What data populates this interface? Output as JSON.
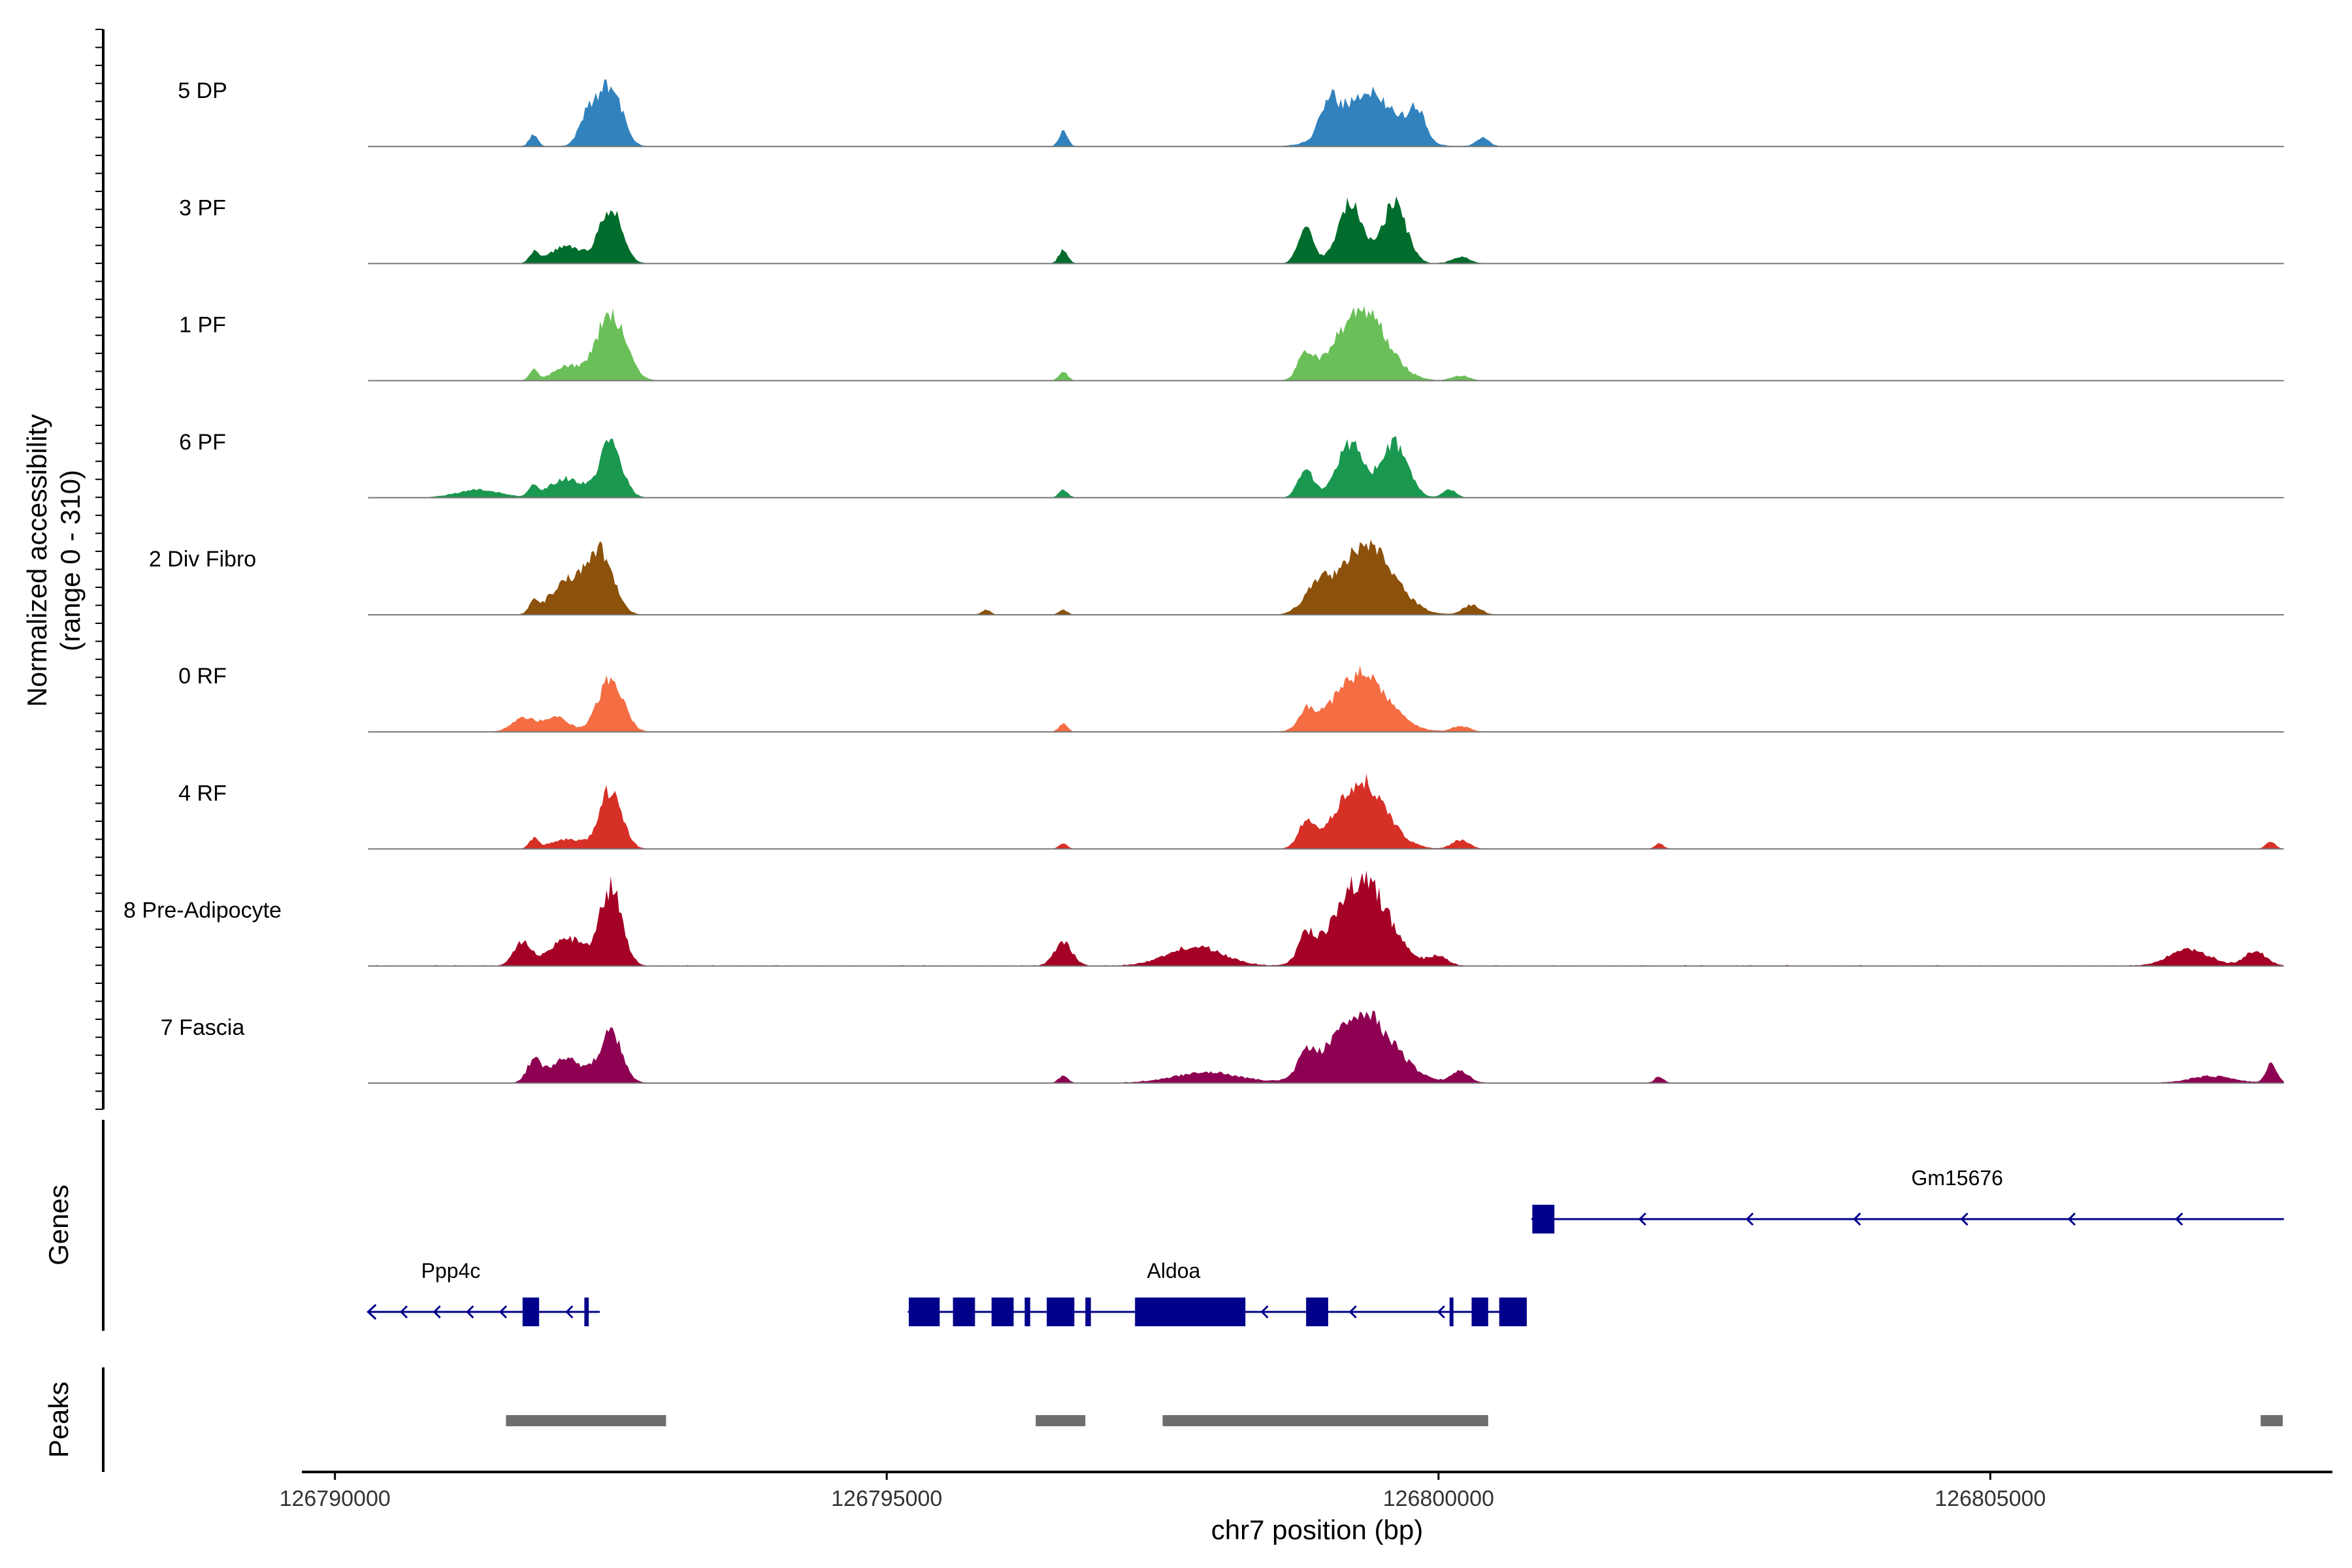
{
  "chart_data": {
    "type": "area",
    "title": "",
    "xlabel": "chr7 position (bp)",
    "ylabel": "Normalized accessibility\n(range 0 - 310)",
    "ylabel_lines": [
      "Normalized accessibility",
      "(range 0 - 310)"
    ],
    "ylim": [
      0,
      310
    ],
    "xlim": [
      126789700,
      126808100
    ],
    "region": {
      "start": 126790300,
      "end": 126807660
    },
    "x_ticks": [
      126790000,
      126795000,
      126800000,
      126805000
    ],
    "x_tick_labels": [
      "126790000",
      "126795000",
      "126800000",
      "126805000"
    ],
    "series": [
      {
        "name": "5 DP",
        "color": "#3182BD",
        "noise": 6,
        "seed": 11,
        "peaks": [
          [
            126791800,
            120,
            40
          ],
          [
            126792300,
            350,
            80
          ],
          [
            126792500,
            630,
            100
          ],
          [
            126796600,
            150,
            40
          ],
          [
            126799000,
            320,
            70
          ],
          [
            126799350,
            560,
            250
          ],
          [
            126799800,
            300,
            80
          ],
          [
            126800400,
            90,
            60
          ]
        ]
      },
      {
        "name": "3 PF",
        "color": "#006D2C",
        "noise": 5,
        "seed": 23,
        "peaks": [
          [
            126791800,
            100,
            40
          ],
          [
            126792100,
            180,
            150
          ],
          [
            126792500,
            580,
            100
          ],
          [
            126796600,
            145,
            40
          ],
          [
            126798800,
            360,
            70
          ],
          [
            126799200,
            650,
            110
          ],
          [
            126799600,
            620,
            110
          ],
          [
            126800200,
            70,
            80
          ]
        ]
      },
      {
        "name": "1 PF",
        "color": "#6BBF59",
        "noise": 4,
        "seed": 37,
        "peaks": [
          [
            126791800,
            110,
            40
          ],
          [
            126792100,
            150,
            120
          ],
          [
            126792500,
            700,
            130
          ],
          [
            126796600,
            90,
            40
          ],
          [
            126798800,
            270,
            70
          ],
          [
            126799300,
            760,
            220
          ],
          [
            126800200,
            50,
            80
          ]
        ]
      },
      {
        "name": "6 PF",
        "color": "#1A9850",
        "noise": 5,
        "seed": 41,
        "peaks": [
          [
            126791300,
            80,
            200
          ],
          [
            126791800,
            120,
            40
          ],
          [
            126792100,
            200,
            150
          ],
          [
            126792500,
            570,
            100
          ],
          [
            126796600,
            80,
            40
          ],
          [
            126798800,
            300,
            70
          ],
          [
            126799200,
            560,
            120
          ],
          [
            126799600,
            570,
            120
          ],
          [
            126800100,
            80,
            60
          ]
        ]
      },
      {
        "name": "2 Div Fibro",
        "color": "#8C510A",
        "noise": 4,
        "seed": 53,
        "peaks": [
          [
            126791800,
            110,
            40
          ],
          [
            126792100,
            340,
            150
          ],
          [
            126792400,
            630,
            120
          ],
          [
            126795900,
            50,
            40
          ],
          [
            126796600,
            50,
            40
          ],
          [
            126798900,
            230,
            120
          ],
          [
            126799350,
            720,
            240
          ],
          [
            126800300,
            100,
            80
          ]
        ]
      },
      {
        "name": "0 RF",
        "color": "#F46D43",
        "noise": 4,
        "seed": 67,
        "peaks": [
          [
            126791700,
            140,
            100
          ],
          [
            126792000,
            150,
            120
          ],
          [
            126792500,
            580,
            110
          ],
          [
            126796600,
            80,
            40
          ],
          [
            126798800,
            190,
            70
          ],
          [
            126799300,
            600,
            240
          ],
          [
            126800200,
            60,
            80
          ]
        ]
      },
      {
        "name": "4 RF",
        "color": "#D73027",
        "noise": 4,
        "seed": 71,
        "peaks": [
          [
            126791800,
            100,
            40
          ],
          [
            126792100,
            100,
            150
          ],
          [
            126792500,
            620,
            100
          ],
          [
            126796600,
            50,
            40
          ],
          [
            126798800,
            260,
            70
          ],
          [
            126799300,
            700,
            220
          ],
          [
            126800200,
            90,
            80
          ],
          [
            126802000,
            55,
            40
          ],
          [
            126807540,
            80,
            40
          ]
        ]
      },
      {
        "name": "8 Pre-Adipocyte",
        "color": "#A50026",
        "noise": 12,
        "seed": 83,
        "peaks": [
          [
            126791700,
            250,
            80
          ],
          [
            126792100,
            300,
            150
          ],
          [
            126792500,
            800,
            100
          ],
          [
            126796600,
            250,
            80
          ],
          [
            126797800,
            200,
            250
          ],
          [
            126798800,
            260,
            70
          ],
          [
            126799300,
            900,
            240
          ],
          [
            126800000,
            100,
            80
          ],
          [
            126806800,
            170,
            180
          ],
          [
            126807400,
            150,
            100
          ]
        ]
      },
      {
        "name": "7 Fascia",
        "color": "#8E0152",
        "noise": 7,
        "seed": 97,
        "peaks": [
          [
            126791800,
            220,
            60
          ],
          [
            126792100,
            260,
            150
          ],
          [
            126792500,
            530,
            100
          ],
          [
            126796600,
            80,
            40
          ],
          [
            126797900,
            110,
            300
          ],
          [
            126798800,
            210,
            70
          ],
          [
            126799300,
            720,
            280
          ],
          [
            126800200,
            120,
            80
          ],
          [
            126802000,
            70,
            40
          ],
          [
            126807000,
            70,
            200
          ],
          [
            126807550,
            200,
            50
          ]
        ]
      }
    ],
    "genes": [
      {
        "name": "Ppp4c",
        "strand": "-",
        "start": 126790300,
        "end": 126792400,
        "exons": [
          [
            126791700,
            126791850
          ],
          [
            126792260,
            126792300
          ]
        ],
        "label_at": 126791050
      },
      {
        "name": "Aldoa",
        "strand": "-",
        "start": 126795200,
        "end": 126800800,
        "exons": [
          [
            126795200,
            126795480
          ],
          [
            126795600,
            126795800
          ],
          [
            126795950,
            126796150
          ],
          [
            126796250,
            126796300
          ],
          [
            126796450,
            126796700
          ],
          [
            126796800,
            126796850
          ],
          [
            126797250,
            126798250
          ],
          [
            126798800,
            126799000
          ],
          [
            126800100,
            126800130
          ],
          [
            126800300,
            126800450
          ],
          [
            126800550,
            126800800
          ]
        ],
        "label_at": 126797600
      },
      {
        "name": "Gm15676",
        "strand": "-",
        "start": 126800850,
        "end": 126807660,
        "exons": [
          [
            126800850,
            126801050
          ]
        ],
        "label_at": 126804700
      }
    ],
    "peaks": [
      [
        126791550,
        126793000
      ],
      [
        126796350,
        126796800
      ],
      [
        126797500,
        126800450
      ],
      [
        126807450,
        126807650
      ]
    ],
    "panel_labels": {
      "genes": "Genes",
      "peaks": "Peaks"
    }
  }
}
